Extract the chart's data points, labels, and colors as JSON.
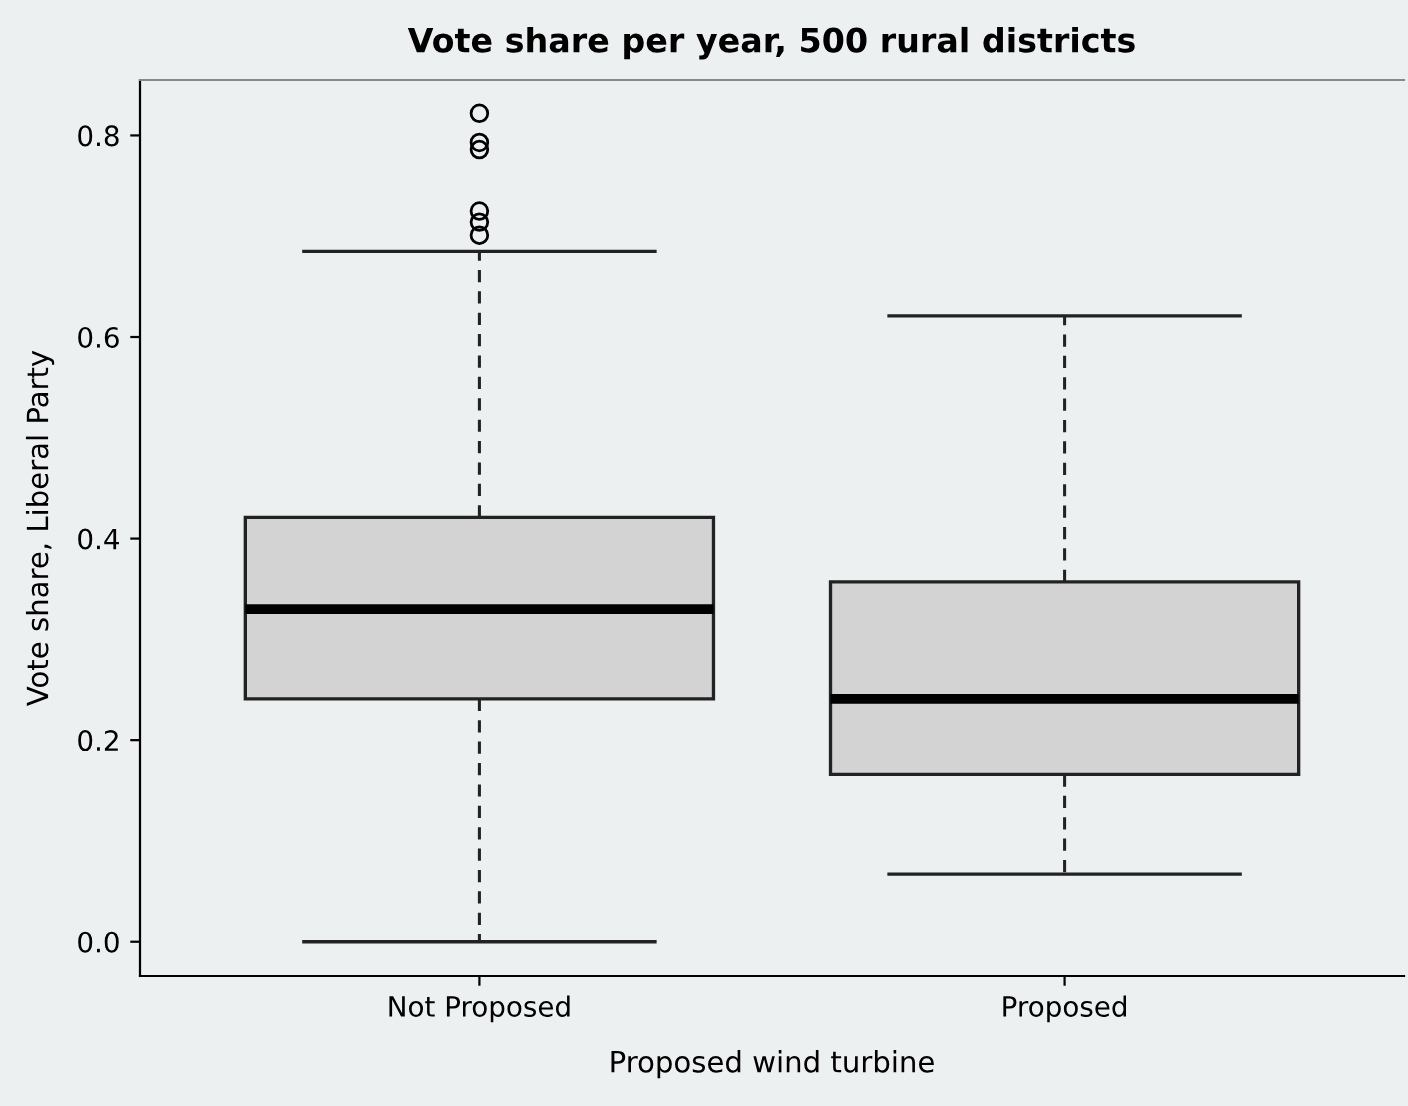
{
  "chart_data": {
    "type": "box",
    "title": "Vote share per year, 500 rural districts",
    "xlabel": "Proposed wind turbine",
    "ylabel": "Vote share, Liberal Party",
    "categories": [
      "Not Proposed",
      "Proposed"
    ],
    "boxes": [
      {
        "low": 0.0,
        "q1": 0.241,
        "median": 0.33,
        "q3": 0.421,
        "high": 0.685,
        "outliers": [
          0.822,
          0.793,
          0.786,
          0.725,
          0.714,
          0.701
        ]
      },
      {
        "low": 0.067,
        "q1": 0.166,
        "median": 0.241,
        "q3": 0.357,
        "high": 0.621
      }
    ],
    "color": "#d3d3d3",
    "ylim": [
      -0.034,
      0.855
    ],
    "yticks": [
      {
        "value": 0,
        "label": "0.0"
      },
      0.2,
      0.4,
      0.6,
      0.8
    ],
    "grid": false
  }
}
